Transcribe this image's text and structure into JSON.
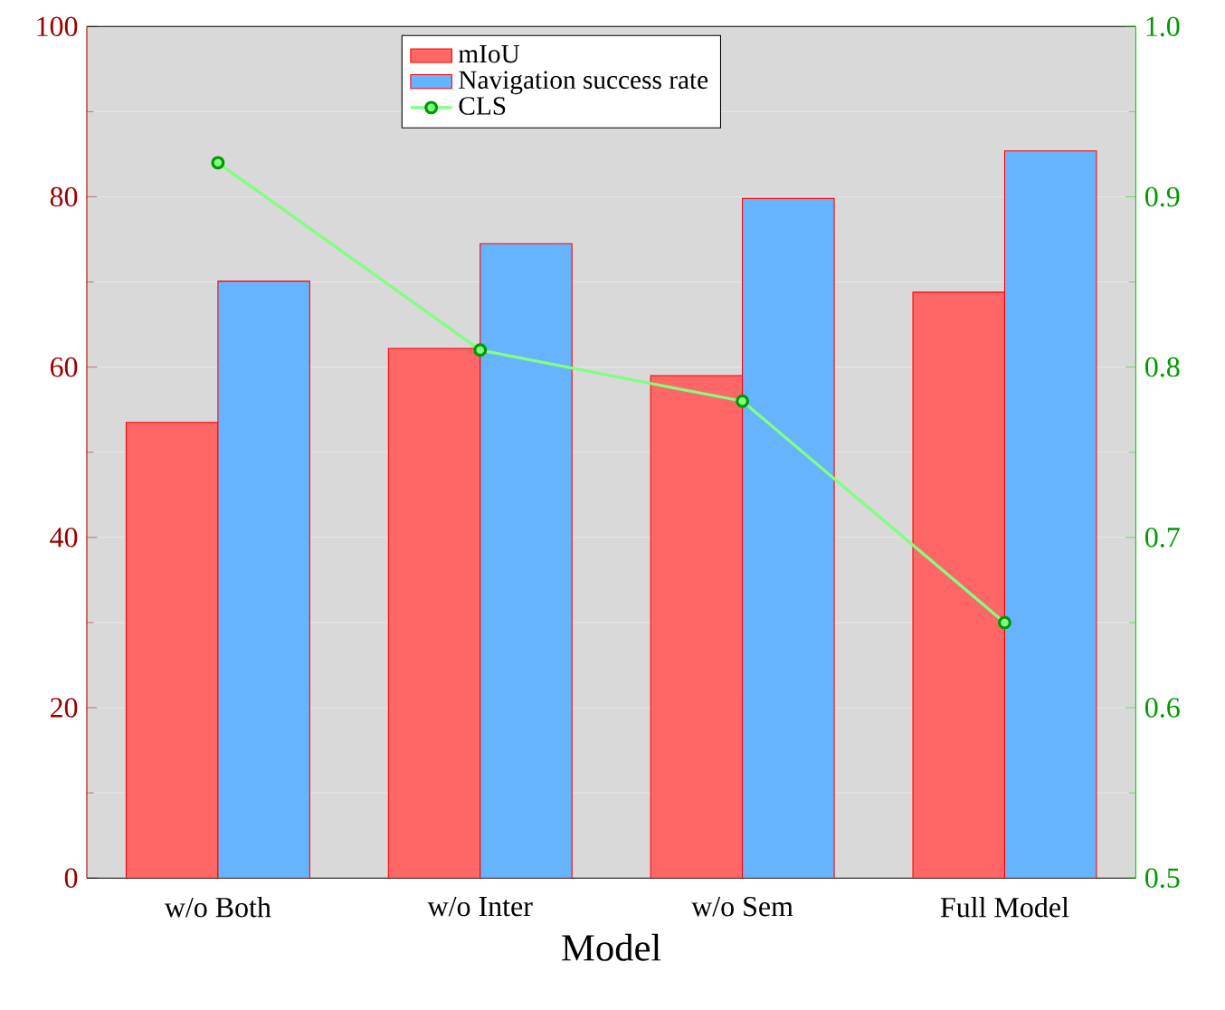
{
  "chart_data": {
    "type": "bar",
    "xlabel": "Model",
    "categories": [
      "w/o Both",
      "w/o Inter",
      "w/o Sem",
      "Full Model"
    ],
    "series": [
      {
        "name": "mIoU",
        "color": "#ff6666",
        "values": [
          53.5,
          62.2,
          59.0,
          68.8
        ]
      },
      {
        "name": "Navigation success rate",
        "color": "#66b3ff",
        "values": [
          70.1,
          74.5,
          79.8,
          85.4
        ]
      },
      {
        "name": "CLS",
        "type": "line",
        "axis": "y2",
        "color": "#80ff80",
        "marker": "circle",
        "values": [
          0.92,
          0.81,
          0.78,
          0.65
        ]
      }
    ],
    "ylim": [
      0,
      100
    ],
    "yticks": [
      0,
      20,
      40,
      60,
      80,
      100
    ],
    "y2lim": [
      0.5,
      1.0
    ],
    "y2ticks": [
      0.5,
      0.6,
      0.7,
      0.8,
      0.9,
      {
        "value": 1.0,
        "label": "1.0"
      }
    ],
    "grid": "y",
    "legend": "top"
  }
}
